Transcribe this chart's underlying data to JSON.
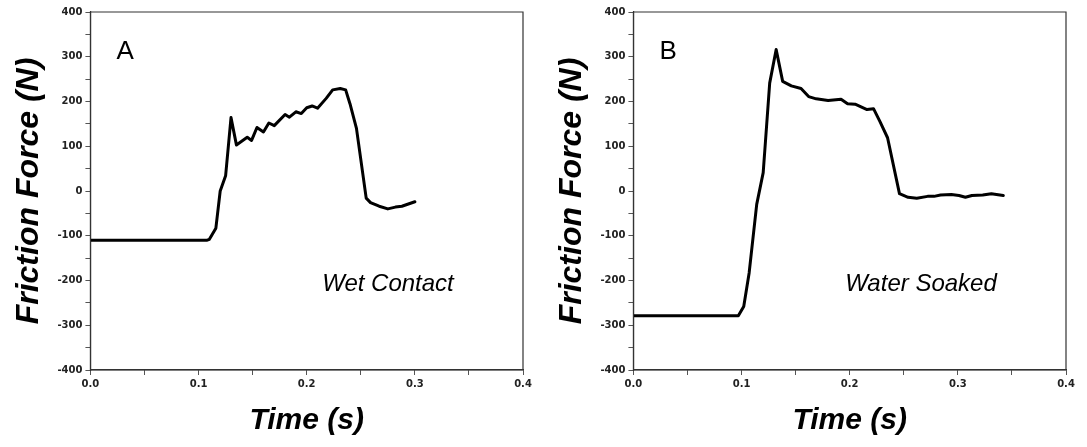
{
  "chart_data": [
    {
      "type": "line",
      "xlabel": "Time (s)",
      "ylabel": "Friction Force (N)",
      "annotations": [
        "A",
        "Wet Contact"
      ],
      "grid": false,
      "legend": false,
      "marker": "none",
      "line_style": "solid",
      "xlim": [
        0,
        0.4
      ],
      "ylim": [
        -400,
        400
      ],
      "xticks": [
        {
          "value": 0,
          "label": "0.0"
        },
        {
          "value": 0.05,
          "label": null
        },
        0.1,
        {
          "value": 0.15,
          "label": null
        },
        0.2,
        {
          "value": 0.25,
          "label": null
        },
        0.3,
        {
          "value": 0.35,
          "label": null
        },
        0.4
      ],
      "yticks": [
        -400,
        {
          "value": -350,
          "label": null
        },
        -300,
        {
          "value": -250,
          "label": null
        },
        -200,
        {
          "value": -150,
          "label": null
        },
        -100,
        {
          "value": -50,
          "label": null
        },
        0,
        {
          "value": 50,
          "label": null
        },
        100,
        {
          "value": 150,
          "label": null
        },
        200,
        {
          "value": 250,
          "label": null
        },
        300,
        {
          "value": 350,
          "label": null
        },
        400
      ],
      "series": [
        {
          "color": "#000000",
          "x": [
            0,
            0.108,
            0.11,
            0.116,
            0.12,
            0.125,
            0.13,
            0.135,
            0.145,
            0.149,
            0.154,
            0.16,
            0.165,
            0.17,
            0.18,
            0.184,
            0.19,
            0.195,
            0.2,
            0.205,
            0.21,
            0.218,
            0.224,
            0.231,
            0.236,
            0.24,
            0.246,
            0.255,
            0.259,
            0.267,
            0.275,
            0.282,
            0.288,
            0.3
          ],
          "values": [
            -110,
            -110,
            -108,
            -83,
            0,
            34,
            164,
            103,
            120,
            113,
            142,
            132,
            152,
            146,
            171,
            165,
            177,
            173,
            186,
            190,
            185,
            207,
            226,
            229,
            226,
            195,
            140,
            -16,
            -26,
            -34,
            -40,
            -36,
            -34,
            -24
          ]
        }
      ]
    },
    {
      "type": "line",
      "xlabel": "Time (s)",
      "ylabel": "Friction Force (N)",
      "annotations": [
        "B",
        "Water Soaked"
      ],
      "grid": false,
      "legend": false,
      "marker": "none",
      "line_style": "solid",
      "xlim": [
        0,
        0.4
      ],
      "ylim": [
        -400,
        400
      ],
      "xticks": [
        {
          "value": 0,
          "label": "0.0"
        },
        {
          "value": 0.05,
          "label": null
        },
        0.1,
        {
          "value": 0.15,
          "label": null
        },
        0.2,
        {
          "value": 0.25,
          "label": null
        },
        0.3,
        {
          "value": 0.35,
          "label": null
        },
        0.4
      ],
      "yticks": [
        -400,
        {
          "value": -350,
          "label": null
        },
        -300,
        {
          "value": -250,
          "label": null
        },
        -200,
        {
          "value": -150,
          "label": null
        },
        -100,
        {
          "value": -50,
          "label": null
        },
        0,
        {
          "value": 50,
          "label": null
        },
        100,
        {
          "value": 150,
          "label": null
        },
        200,
        {
          "value": 250,
          "label": null
        },
        300,
        {
          "value": 350,
          "label": null
        },
        400
      ],
      "series": [
        {
          "color": "#000000",
          "x": [
            0,
            0.097,
            0.102,
            0.107,
            0.114,
            0.12,
            0.126,
            0.132,
            0.138,
            0.146,
            0.155,
            0.162,
            0.169,
            0.18,
            0.192,
            0.198,
            0.205,
            0.216,
            0.222,
            0.228,
            0.235,
            0.246,
            0.254,
            0.262,
            0.272,
            0.278,
            0.284,
            0.294,
            0.301,
            0.307,
            0.313,
            0.323,
            0.331,
            0.342
          ],
          "values": [
            -279,
            -279,
            -258,
            -183,
            -30,
            41,
            241,
            316,
            245,
            235,
            229,
            211,
            206,
            202,
            205,
            195,
            194,
            182,
            184,
            155,
            119,
            -6,
            -14,
            -16,
            -12,
            -12,
            -9,
            -8,
            -10,
            -14,
            -10,
            -9,
            -6,
            -10
          ]
        }
      ]
    }
  ]
}
